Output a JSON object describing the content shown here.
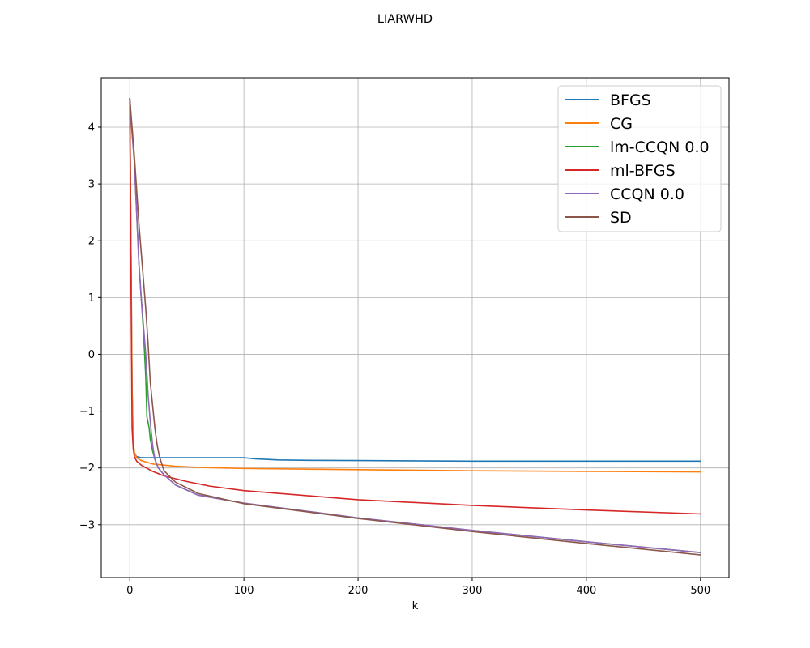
{
  "chart_data": {
    "type": "line",
    "title": "LIARWHD",
    "xlabel": "k",
    "ylabel": "",
    "xlim": [
      -25,
      525
    ],
    "ylim": [
      -3.93,
      4.87
    ],
    "xticks": [
      0,
      100,
      200,
      300,
      400,
      500
    ],
    "yticks": [
      -3,
      -2,
      -1,
      0,
      1,
      2,
      3,
      4
    ],
    "grid": true,
    "legend_position": "top-right",
    "series": [
      {
        "name": "BFGS",
        "color": "#1f77b4",
        "x": [
          0,
          1,
          2,
          3,
          4,
          6,
          10,
          20,
          40,
          60,
          80,
          100,
          110,
          130,
          150,
          200,
          300,
          400,
          500
        ],
        "y": [
          4.5,
          2.0,
          -0.6,
          -1.55,
          -1.75,
          -1.8,
          -1.82,
          -1.82,
          -1.82,
          -1.82,
          -1.82,
          -1.82,
          -1.84,
          -1.86,
          -1.865,
          -1.87,
          -1.88,
          -1.88,
          -1.88
        ]
      },
      {
        "name": "CG",
        "color": "#ff7f0e",
        "x": [
          0,
          1,
          2,
          3,
          4,
          6,
          10,
          20,
          40,
          60,
          80,
          100,
          150,
          200,
          300,
          400,
          500
        ],
        "y": [
          4.5,
          2.0,
          -0.6,
          -1.5,
          -1.72,
          -1.82,
          -1.87,
          -1.93,
          -1.97,
          -1.99,
          -2.0,
          -2.01,
          -2.02,
          -2.03,
          -2.05,
          -2.06,
          -2.07
        ]
      },
      {
        "name": "lm-CCQN 0.0",
        "color": "#2ca02c",
        "x": [
          0,
          2,
          4,
          6,
          8,
          10,
          12,
          14,
          15,
          16,
          17,
          18,
          20,
          22,
          25,
          30,
          40,
          60,
          100,
          150,
          200,
          300,
          400,
          500
        ],
        "y": [
          4.5,
          3.9,
          3.4,
          2.5,
          1.6,
          1.0,
          0.4,
          -0.4,
          -1.1,
          -1.2,
          -1.3,
          -1.5,
          -1.7,
          -1.85,
          -2.0,
          -2.12,
          -2.3,
          -2.48,
          -2.62,
          -2.75,
          -2.88,
          -3.1,
          -3.3,
          -3.49
        ]
      },
      {
        "name": "ml-BFGS",
        "color": "#d62728",
        "x": [
          0,
          1,
          2,
          3,
          4,
          6,
          10,
          20,
          30,
          50,
          70,
          100,
          150,
          200,
          300,
          400,
          500
        ],
        "y": [
          4.5,
          1.5,
          -1.3,
          -1.65,
          -1.8,
          -1.88,
          -1.95,
          -2.06,
          -2.14,
          -2.24,
          -2.32,
          -2.4,
          -2.48,
          -2.56,
          -2.66,
          -2.74,
          -2.81
        ]
      },
      {
        "name": "CCQN 0.0",
        "color": "#9467bd",
        "x": [
          0,
          2,
          4,
          6,
          8,
          10,
          12,
          14,
          16,
          18,
          20,
          22,
          25,
          30,
          40,
          60,
          100,
          150,
          200,
          300,
          400,
          500
        ],
        "y": [
          4.5,
          3.9,
          3.4,
          2.5,
          1.6,
          1.0,
          0.5,
          0.0,
          -0.7,
          -1.2,
          -1.6,
          -1.85,
          -2.0,
          -2.12,
          -2.3,
          -2.48,
          -2.62,
          -2.75,
          -2.88,
          -3.1,
          -3.3,
          -3.49
        ]
      },
      {
        "name": "SD",
        "color": "#8c564b",
        "x": [
          0,
          2,
          4,
          6,
          8,
          10,
          12,
          14,
          16,
          18,
          20,
          22,
          24,
          26,
          30,
          40,
          60,
          100,
          150,
          200,
          300,
          400,
          500
        ],
        "y": [
          4.5,
          4.0,
          3.5,
          2.9,
          2.3,
          1.8,
          1.3,
          0.8,
          0.2,
          -0.5,
          -0.9,
          -1.3,
          -1.6,
          -1.8,
          -2.05,
          -2.25,
          -2.45,
          -2.63,
          -2.76,
          -2.89,
          -3.12,
          -3.33,
          -3.53
        ]
      }
    ]
  }
}
